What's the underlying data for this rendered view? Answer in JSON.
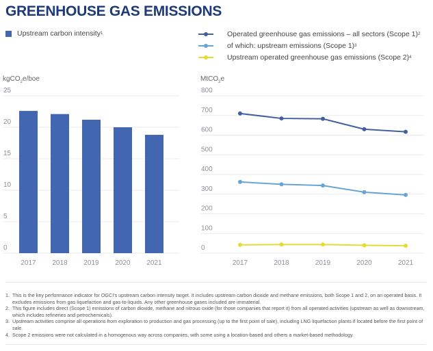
{
  "title": "GREENHOUSE GAS EMISSIONS",
  "colors": {
    "title": "#1d3a7a",
    "bar": "#4266b0",
    "series_dark": "#41609e",
    "series_light": "#69a5d4",
    "series_yellow": "#e4dc34",
    "grid": "#ebebeb",
    "tick": "#8a9099"
  },
  "left_legend": {
    "label": "Upstream carbon intensity",
    "sup": "1"
  },
  "right_legend": [
    {
      "label": "Operated greenhouse gas emissions – all sectors (Scope 1)",
      "sup": "2"
    },
    {
      "label": "of which: upstream emissions (Scope 1)",
      "sup": "3"
    },
    {
      "label": "Upstream operated greenhouse gas emissions (Scope 2)",
      "sup": "4"
    }
  ],
  "left_unit": {
    "pre": "kgCO",
    "sub": "2",
    "post": "e/boe"
  },
  "right_unit": {
    "pre": "MtCO",
    "sub": "2",
    "post": "e"
  },
  "chart_data": [
    {
      "type": "bar",
      "title": "Upstream carbon intensity",
      "ylabel": "kgCO2e/boe",
      "xlabel": "",
      "categories": [
        "2017",
        "2018",
        "2019",
        "2020",
        "2021"
      ],
      "values": [
        22.6,
        22.1,
        21.2,
        20.0,
        18.8
      ],
      "ylim": [
        0,
        25
      ],
      "yticks": [
        0,
        5,
        10,
        15,
        20,
        25
      ],
      "grid": true
    },
    {
      "type": "line",
      "ylabel": "MtCO2e",
      "xlabel": "",
      "categories": [
        "2017",
        "2018",
        "2019",
        "2020",
        "2021"
      ],
      "series": [
        {
          "name": "Operated greenhouse gas emissions – all sectors (Scope 1)",
          "values": [
            710,
            685,
            683,
            630,
            617
          ]
        },
        {
          "name": "of which: upstream emissions (Scope 1)",
          "values": [
            362,
            350,
            344,
            310,
            296
          ]
        },
        {
          "name": "Upstream operated greenhouse gas emissions (Scope 2)",
          "values": [
            42,
            44,
            44,
            40,
            38
          ]
        }
      ],
      "ylim": [
        0,
        800
      ],
      "yticks": [
        0,
        100,
        200,
        300,
        400,
        500,
        600,
        700,
        800
      ],
      "grid": true,
      "legend": "top"
    }
  ],
  "footnotes": [
    {
      "num": "1.",
      "text": "This is the key performance indicator for OGCI's upstream carbon intensity target. It includes upstream carbon dioxide and methane emissions, both Scope 1 and 2, on an operated basis. It excludes emissions from gas liquefaction and gas-to-liquids. Any other greenhouse gases included are immaterial."
    },
    {
      "num": "2.",
      "text": "This figure includes direct (Scope 1) emissions of carbon dioxide, methane and nitrous oxide (for those companies that report it) from all operated activities (upstream as well as downstream, which includes refineries and petrochemicals)."
    },
    {
      "num": "3.",
      "text": "Upstream activities comprise all operations from exploration to production and gas processing (up to the first point of sale), including LNG liquefaction plants if located before the first point of sale."
    },
    {
      "num": "4.",
      "text": "Scope 2 emissions were not calculated in a homogenous way across companies, with some using a location-based and others a market-based methodology."
    }
  ]
}
